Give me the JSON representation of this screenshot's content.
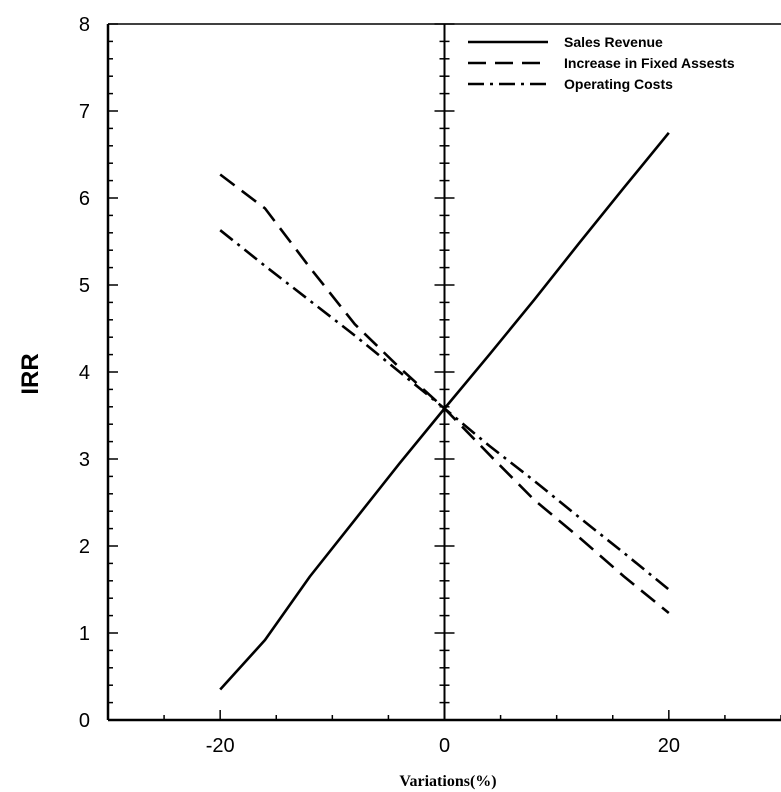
{
  "chart_data": {
    "type": "line",
    "title": "",
    "xlabel": "Variations(%)",
    "ylabel": "IRR",
    "xlim": [
      -30,
      30
    ],
    "ylim": [
      0,
      8
    ],
    "x_ticks": [
      -20,
      0,
      20
    ],
    "y_ticks": [
      0,
      1,
      2,
      3,
      4,
      5,
      6,
      7,
      8
    ],
    "grid": false,
    "legend_position": "top-right",
    "series": [
      {
        "name": "Sales Revenue",
        "style": "solid",
        "x": [
          -20,
          -16,
          -12,
          -8,
          -4,
          0,
          4,
          8,
          12,
          16,
          20
        ],
        "y": [
          0.35,
          0.92,
          1.65,
          2.3,
          2.95,
          3.58,
          4.2,
          4.83,
          5.48,
          6.12,
          6.75
        ]
      },
      {
        "name": "Increase in Fixed Assests",
        "style": "dashed",
        "x": [
          -20,
          -16,
          -12,
          -8,
          -4,
          0,
          4,
          8,
          12,
          16,
          20
        ],
        "y": [
          6.27,
          5.88,
          5.2,
          4.55,
          4.05,
          3.58,
          3.05,
          2.53,
          2.1,
          1.65,
          1.23
        ]
      },
      {
        "name": "Operating Costs",
        "style": "dashdot",
        "x": [
          -20,
          -16,
          -12,
          -8,
          -4,
          0,
          4,
          8,
          12,
          16,
          20
        ],
        "y": [
          5.63,
          5.22,
          4.82,
          4.42,
          4.0,
          3.58,
          3.15,
          2.75,
          2.33,
          1.92,
          1.5
        ]
      }
    ]
  }
}
